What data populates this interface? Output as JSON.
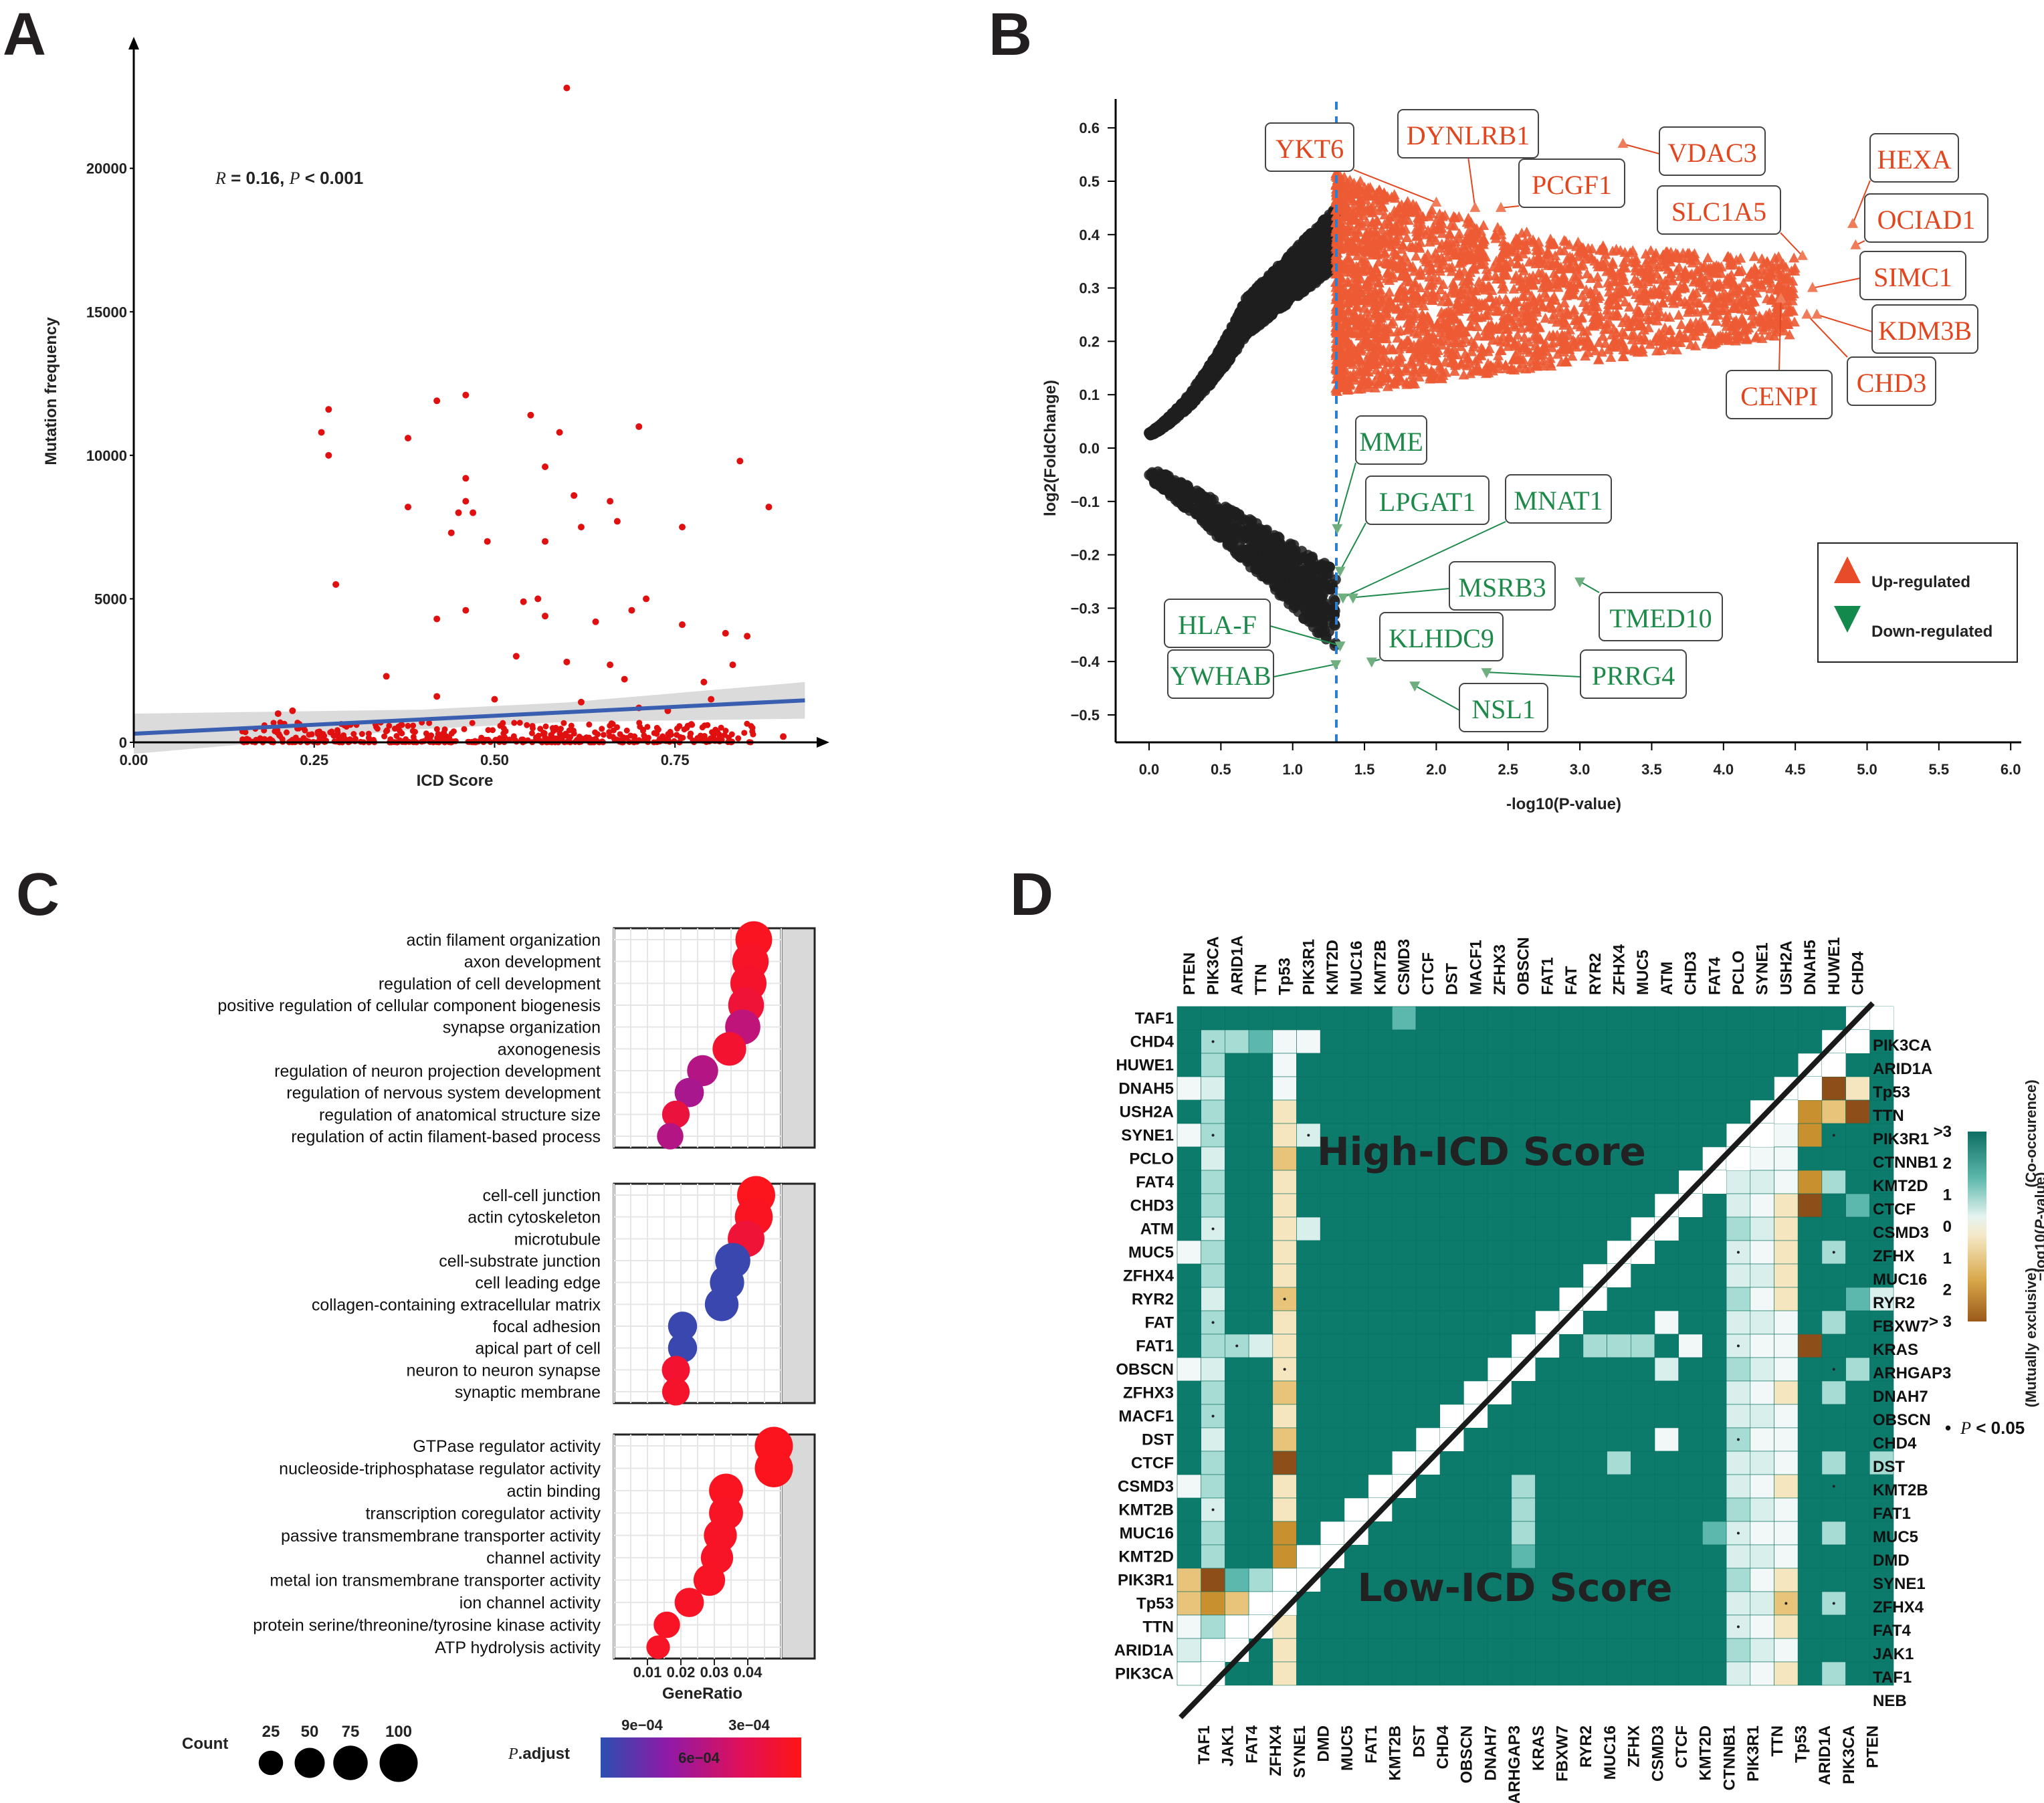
{
  "panels": {
    "A": "A",
    "B": "B",
    "C": "C",
    "D": "D"
  },
  "chart_data": [
    {
      "panel": "A",
      "type": "scatter",
      "xlabel": "ICD Score",
      "ylabel": "Mutation frequency",
      "xlim": [
        0,
        0.95
      ],
      "ylim": [
        0,
        24000
      ],
      "x_ticks": [
        "0.00",
        "0.25",
        "0.50",
        "0.75"
      ],
      "y_ticks": [
        "0",
        "5000",
        "10000",
        "15000",
        "20000"
      ],
      "annotation": {
        "r": "R",
        "text": " = 0.16, ",
        "p": "P",
        "p_text": " < 0.001"
      },
      "regression": {
        "intercept": 300,
        "slope": 1250
      },
      "outliers": [
        [
          0.6,
          22800
        ],
        [
          0.27,
          11600
        ],
        [
          0.26,
          10800
        ],
        [
          0.27,
          10000
        ],
        [
          0.38,
          10600
        ],
        [
          0.42,
          11900
        ],
        [
          0.46,
          12100
        ],
        [
          0.55,
          11400
        ],
        [
          0.59,
          10800
        ],
        [
          0.7,
          11000
        ],
        [
          0.46,
          9200
        ],
        [
          0.46,
          8400
        ],
        [
          0.45,
          8000
        ],
        [
          0.47,
          8000
        ],
        [
          0.44,
          7300
        ],
        [
          0.49,
          7000
        ],
        [
          0.38,
          8200
        ],
        [
          0.28,
          5500
        ],
        [
          0.57,
          9600
        ],
        [
          0.57,
          7000
        ],
        [
          0.61,
          8600
        ],
        [
          0.62,
          7500
        ],
        [
          0.66,
          8400
        ],
        [
          0.67,
          7700
        ],
        [
          0.76,
          7500
        ],
        [
          0.84,
          9800
        ],
        [
          0.88,
          8200
        ],
        [
          0.42,
          4300
        ],
        [
          0.46,
          4600
        ],
        [
          0.54,
          4900
        ],
        [
          0.56,
          5000
        ],
        [
          0.57,
          4400
        ],
        [
          0.64,
          4200
        ],
        [
          0.69,
          4600
        ],
        [
          0.71,
          5000
        ],
        [
          0.76,
          4100
        ],
        [
          0.82,
          3800
        ],
        [
          0.85,
          3700
        ],
        [
          0.35,
          2300
        ],
        [
          0.53,
          3000
        ],
        [
          0.6,
          2800
        ],
        [
          0.66,
          2700
        ],
        [
          0.68,
          2200
        ],
        [
          0.79,
          2100
        ],
        [
          0.83,
          2700
        ],
        [
          0.2,
          1000
        ],
        [
          0.22,
          1100
        ],
        [
          0.42,
          1600
        ],
        [
          0.5,
          1500
        ],
        [
          0.62,
          1400
        ],
        [
          0.7,
          1200
        ],
        [
          0.74,
          1100
        ],
        [
          0.8,
          1500
        ],
        [
          0.9,
          200
        ]
      ],
      "cloud": {
        "count": 430,
        "x_range": [
          0.15,
          0.86
        ],
        "y_max": 700
      }
    },
    {
      "panel": "B",
      "type": "scatter",
      "xlabel": "-log10(P-value)",
      "ylabel": "log2(FoldChange)",
      "xlim": [
        -0.05,
        6.0
      ],
      "ylim": [
        -0.55,
        0.65
      ],
      "x_ticks": [
        "0.0",
        "0.5",
        "1.0",
        "1.5",
        "2.0",
        "2.5",
        "3.0",
        "3.5",
        "4.0",
        "4.5",
        "5.0",
        "5.5",
        "6.0"
      ],
      "y_ticks": [
        "0.6",
        "0.5",
        "0.4",
        "0.3",
        "0.2",
        "0.1",
        "0.0",
        "−0.1",
        "−0.2",
        "−0.3",
        "−0.4",
        "−0.5"
      ],
      "threshold_x": 1.3,
      "legend": [
        {
          "label": "Up-regulated",
          "color": "#e84b2a"
        },
        {
          "label": "Down-regulated",
          "color": "#138a4b"
        }
      ],
      "up_labels": [
        {
          "gene": "YKT6",
          "x": 2.0,
          "y": 0.46
        },
        {
          "gene": "DYNLRB1",
          "x": 2.27,
          "y": 0.45
        },
        {
          "gene": "PCGF1",
          "x": 2.45,
          "y": 0.45
        },
        {
          "gene": "VDAC3",
          "x": 3.3,
          "y": 0.57
        },
        {
          "gene": "SLC1A5",
          "x": 4.55,
          "y": 0.36
        },
        {
          "gene": "HEXA",
          "x": 4.9,
          "y": 0.42
        },
        {
          "gene": "OCIAD1",
          "x": 4.92,
          "y": 0.38
        },
        {
          "gene": "SIMC1",
          "x": 4.62,
          "y": 0.3
        },
        {
          "gene": "KDM3B",
          "x": 4.65,
          "y": 0.25
        },
        {
          "gene": "CHD3",
          "x": 4.58,
          "y": 0.25
        },
        {
          "gene": "CENPI",
          "x": 4.4,
          "y": 0.28
        }
      ],
      "down_labels": [
        {
          "gene": "MME",
          "x": 1.31,
          "y": -0.15
        },
        {
          "gene": "LPGAT1",
          "x": 1.33,
          "y": -0.23
        },
        {
          "gene": "MNAT1",
          "x": 1.35,
          "y": -0.28
        },
        {
          "gene": "MSRB3",
          "x": 1.42,
          "y": -0.28
        },
        {
          "gene": "TMED10",
          "x": 3.0,
          "y": -0.25
        },
        {
          "gene": "HLA-F",
          "x": 1.33,
          "y": -0.37
        },
        {
          "gene": "KLHDC9",
          "x": 1.55,
          "y": -0.4
        },
        {
          "gene": "YWHAB",
          "x": 1.3,
          "y": -0.405
        },
        {
          "gene": "PRRG4",
          "x": 2.35,
          "y": -0.42
        },
        {
          "gene": "NSL1",
          "x": 1.85,
          "y": -0.445
        }
      ]
    },
    {
      "panel": "C",
      "type": "scatter",
      "xlabel": "GeneRatio",
      "x_ticks": [
        "0.01",
        "0.02",
        "0.03",
        "0.04"
      ],
      "xlim": [
        0.0,
        0.05
      ],
      "groups": [
        {
          "terms": [
            {
              "t": "actin filament organization",
              "x": 0.0418,
              "count": 90,
              "p": 0.95
            },
            {
              "t": "axon development",
              "x": 0.0408,
              "count": 88,
              "p": 0.92
            },
            {
              "t": "regulation of cell development",
              "x": 0.0402,
              "count": 86,
              "p": 0.9
            },
            {
              "t": "positive regulation of cellular component biogenesis",
              "x": 0.0395,
              "count": 84,
              "p": 0.85
            },
            {
              "t": "synapse organization",
              "x": 0.0385,
              "count": 80,
              "p": 0.55
            },
            {
              "t": "axonogenesis",
              "x": 0.0345,
              "count": 70,
              "p": 0.88
            },
            {
              "t": "regulation of neuron projection development",
              "x": 0.0265,
              "count": 55,
              "p": 0.5
            },
            {
              "t": "regulation of nervous system development",
              "x": 0.0225,
              "count": 46,
              "p": 0.45
            },
            {
              "t": "regulation of anatomical structure size",
              "x": 0.0185,
              "count": 38,
              "p": 0.82
            },
            {
              "t": "regulation of actin filament-based process",
              "x": 0.0168,
              "count": 33,
              "p": 0.5
            }
          ]
        },
        {
          "terms": [
            {
              "t": "cell-cell junction",
              "x": 0.0425,
              "count": 100,
              "p": 0.97
            },
            {
              "t": "actin cytoskeleton",
              "x": 0.0418,
              "count": 98,
              "p": 0.95
            },
            {
              "t": "microtubule",
              "x": 0.0395,
              "count": 90,
              "p": 0.85
            },
            {
              "t": "cell-substrate junction",
              "x": 0.0355,
              "count": 80,
              "p": 0.05
            },
            {
              "t": "cell leading edge",
              "x": 0.0338,
              "count": 74,
              "p": 0.05
            },
            {
              "t": "collagen-containing extracellular matrix",
              "x": 0.0322,
              "count": 70,
              "p": 0.05
            },
            {
              "t": "focal adhesion",
              "x": 0.0205,
              "count": 45,
              "p": 0.05
            },
            {
              "t": "apical part of cell",
              "x": 0.0205,
              "count": 45,
              "p": 0.05
            },
            {
              "t": "neuron to neuron synapse",
              "x": 0.0185,
              "count": 40,
              "p": 0.88
            },
            {
              "t": "synaptic membrane",
              "x": 0.0185,
              "count": 38,
              "p": 0.9
            }
          ]
        },
        {
          "terms": [
            {
              "t": "GTPase regulator activity",
              "x": 0.0478,
              "count": 100,
              "p": 0.96
            },
            {
              "t": "nucleoside-triphosphatase regulator activity",
              "x": 0.0478,
              "count": 100,
              "p": 0.96
            },
            {
              "t": "actin binding",
              "x": 0.0335,
              "count": 72,
              "p": 0.95
            },
            {
              "t": "transcription coregulator activity",
              "x": 0.0335,
              "count": 72,
              "p": 0.93
            },
            {
              "t": "passive transmembrane transporter activity",
              "x": 0.0318,
              "count": 66,
              "p": 0.92
            },
            {
              "t": "channel activity",
              "x": 0.0308,
              "count": 62,
              "p": 0.92
            },
            {
              "t": "metal ion transmembrane transporter activity",
              "x": 0.0285,
              "count": 58,
              "p": 0.93
            },
            {
              "t": "ion channel activity",
              "x": 0.0225,
              "count": 46,
              "p": 0.92
            },
            {
              "t": "protein serine/threonine/tyrosine kinase activity",
              "x": 0.0158,
              "count": 33,
              "p": 0.93
            },
            {
              "t": "ATP hydrolysis activity",
              "x": 0.0132,
              "count": 22,
              "p": 0.92
            }
          ]
        }
      ],
      "size_legend": {
        "title": "Count",
        "values": [
          25,
          50,
          75,
          100
        ]
      },
      "color_legend": {
        "title_p": "P",
        "title": ".adjust",
        "labels": [
          "9e−04",
          "6e−04",
          "3e−04"
        ],
        "colors": [
          "#2a4fb0",
          "#8e1aa8",
          "#e0105a",
          "#ff1515"
        ]
      }
    },
    {
      "panel": "D",
      "type": "heatmap",
      "top_labels": [
        "PTEN",
        "PIK3CA",
        "ARID1A",
        "TTN",
        "Tp53",
        "PIK3R1",
        "KMT2D",
        "MUC16",
        "KMT2B",
        "CSMD3",
        "CTCF",
        "DST",
        "MACF1",
        "ZFHX3",
        "OBSCN",
        "FAT1",
        "FAT",
        "RYR2",
        "ZFHX4",
        "MUC5",
        "ATM",
        "CHD3",
        "FAT4",
        "PCLO",
        "SYNE1",
        "USH2A",
        "DNAH5",
        "HUWE1",
        "CHD4"
      ],
      "left_labels": [
        "TAF1",
        "CHD4",
        "HUWE1",
        "DNAH5",
        "USH2A",
        "SYNE1",
        "PCLO",
        "FAT4",
        "CHD3",
        "ATM",
        "MUC5",
        "ZFHX4",
        "RYR2",
        "FAT",
        "FAT1",
        "OBSCN",
        "ZFHX3",
        "MACF1",
        "DST",
        "CTCF",
        "CSMD3",
        "KMT2B",
        "MUC16",
        "KMT2D",
        "PIK3R1",
        "Tp53",
        "TTN",
        "ARID1A",
        "PIK3CA"
      ],
      "right_labels": [
        "PIK3CA",
        "ARID1A",
        "Tp53",
        "TTN",
        "PIK3R1",
        "CTNNB1",
        "KMT2D",
        "CTCF",
        "CSMD3",
        "ZFHX",
        "MUC16",
        "RYR2",
        "FBXW7",
        "KRAS",
        "ARHGAP3",
        "DNAH7",
        "OBSCN",
        "CHD4",
        "DST",
        "KMT2B",
        "FAT1",
        "MUC5",
        "DMD",
        "SYNE1",
        "ZFHX4",
        "FAT4",
        "JAK1",
        "TAF1",
        "NEB"
      ],
      "bottom_labels": [
        "TAF1",
        "JAK1",
        "FAT4",
        "ZFHX4",
        "SYNE1",
        "DMD",
        "MUC5",
        "FAT1",
        "KMT2B",
        "DST",
        "CHD4",
        "OBSCN",
        "DNAH7",
        "ARHGAP3",
        "KRAS",
        "FBXW7",
        "RYR2",
        "MUC16",
        "ZFHX",
        "CSMD3",
        "CTCF",
        "KMT2D",
        "CTNNB1",
        "PIK3R1",
        "TTN",
        "Tp53",
        "ARID1A",
        "PIK3CA",
        "PTEN"
      ],
      "upper_title": "High-ICD Score",
      "lower_title": "Low-ICD Score",
      "colorbar": {
        "ticks": [
          ">3",
          "2",
          "1",
          "0",
          "1",
          "2",
          "> 3"
        ],
        "title_pre": "−log10(",
        "title_p": "P",
        "title_post": "-value)",
        "top_label": "(Co-occurence)",
        "bottom_label": "(Mutually exclusive)"
      },
      "sig_note": {
        "dot": "•",
        "p": "P",
        "text": " < 0.05"
      }
    }
  ]
}
